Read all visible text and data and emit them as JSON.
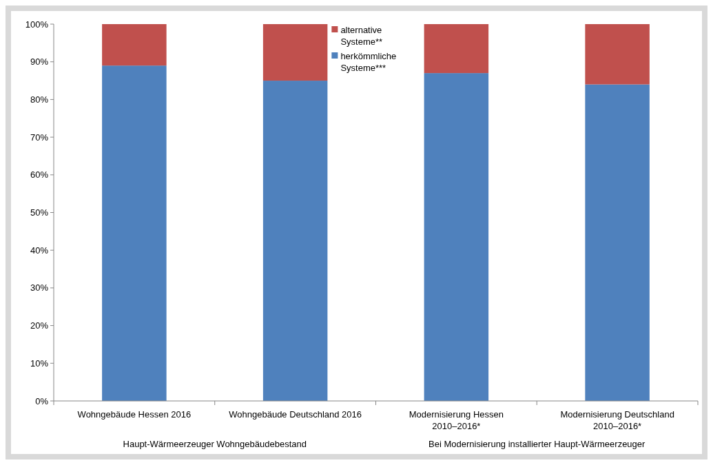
{
  "chart_data": {
    "type": "bar",
    "stacked": true,
    "categories": [
      "Wohngebäude Hessen 2016",
      "Wohngebäude Deutschland 2016",
      "Modernisierung Hessen\n2010–2016*",
      "Modernisierung Deutschland\n2010–2016*"
    ],
    "series": [
      {
        "name": "herkömmliche Systeme***",
        "color": "#4f81bd",
        "values": [
          89,
          85,
          87,
          84
        ]
      },
      {
        "name": "alternative Systeme**",
        "color": "#c0504d",
        "values": [
          11,
          15,
          13,
          16
        ]
      }
    ],
    "ylim": [
      0,
      100
    ],
    "yticks": [
      {
        "value": 0,
        "label": "0%"
      },
      {
        "value": 10,
        "label": "10%"
      },
      {
        "value": 20,
        "label": "20%"
      },
      {
        "value": 30,
        "label": "30%"
      },
      {
        "value": 40,
        "label": "40%"
      },
      {
        "value": 50,
        "label": "50%"
      },
      {
        "value": 60,
        "label": "60%"
      },
      {
        "value": 70,
        "label": "70%"
      },
      {
        "value": 80,
        "label": "80%"
      },
      {
        "value": 90,
        "label": "90%"
      },
      {
        "value": 100,
        "label": "100%"
      }
    ],
    "annotations": [
      "Haupt-Wärmeerzeuger Wohngebäudebestand",
      "Bei Modernisierung installierter Haupt-Wärmeerzeuger"
    ],
    "legend": "top",
    "grid": false
  }
}
